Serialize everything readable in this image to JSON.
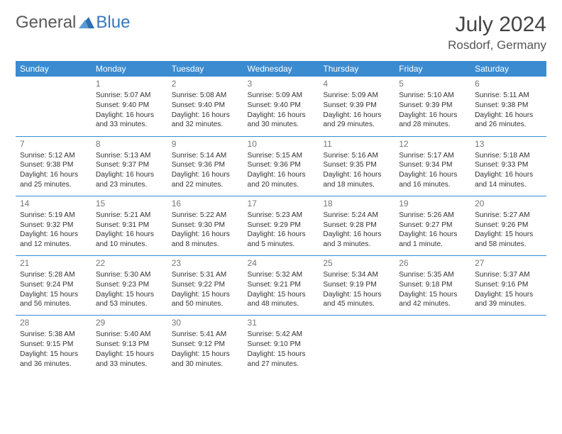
{
  "logo": {
    "part1": "General",
    "part2": "Blue"
  },
  "title": "July 2024",
  "location": "Rosdorf, Germany",
  "header_bg": "#3b8bd1",
  "header_fg": "#ffffff",
  "divider_color": "#3b8bd1",
  "text_color": "#333333",
  "day_headers": [
    "Sunday",
    "Monday",
    "Tuesday",
    "Wednesday",
    "Thursday",
    "Friday",
    "Saturday"
  ],
  "weeks": [
    [
      {
        "n": "",
        "sr": "",
        "ss": "",
        "d1": "",
        "d2": ""
      },
      {
        "n": "1",
        "sr": "Sunrise: 5:07 AM",
        "ss": "Sunset: 9:40 PM",
        "d1": "Daylight: 16 hours",
        "d2": "and 33 minutes."
      },
      {
        "n": "2",
        "sr": "Sunrise: 5:08 AM",
        "ss": "Sunset: 9:40 PM",
        "d1": "Daylight: 16 hours",
        "d2": "and 32 minutes."
      },
      {
        "n": "3",
        "sr": "Sunrise: 5:09 AM",
        "ss": "Sunset: 9:40 PM",
        "d1": "Daylight: 16 hours",
        "d2": "and 30 minutes."
      },
      {
        "n": "4",
        "sr": "Sunrise: 5:09 AM",
        "ss": "Sunset: 9:39 PM",
        "d1": "Daylight: 16 hours",
        "d2": "and 29 minutes."
      },
      {
        "n": "5",
        "sr": "Sunrise: 5:10 AM",
        "ss": "Sunset: 9:39 PM",
        "d1": "Daylight: 16 hours",
        "d2": "and 28 minutes."
      },
      {
        "n": "6",
        "sr": "Sunrise: 5:11 AM",
        "ss": "Sunset: 9:38 PM",
        "d1": "Daylight: 16 hours",
        "d2": "and 26 minutes."
      }
    ],
    [
      {
        "n": "7",
        "sr": "Sunrise: 5:12 AM",
        "ss": "Sunset: 9:38 PM",
        "d1": "Daylight: 16 hours",
        "d2": "and 25 minutes."
      },
      {
        "n": "8",
        "sr": "Sunrise: 5:13 AM",
        "ss": "Sunset: 9:37 PM",
        "d1": "Daylight: 16 hours",
        "d2": "and 23 minutes."
      },
      {
        "n": "9",
        "sr": "Sunrise: 5:14 AM",
        "ss": "Sunset: 9:36 PM",
        "d1": "Daylight: 16 hours",
        "d2": "and 22 minutes."
      },
      {
        "n": "10",
        "sr": "Sunrise: 5:15 AM",
        "ss": "Sunset: 9:36 PM",
        "d1": "Daylight: 16 hours",
        "d2": "and 20 minutes."
      },
      {
        "n": "11",
        "sr": "Sunrise: 5:16 AM",
        "ss": "Sunset: 9:35 PM",
        "d1": "Daylight: 16 hours",
        "d2": "and 18 minutes."
      },
      {
        "n": "12",
        "sr": "Sunrise: 5:17 AM",
        "ss": "Sunset: 9:34 PM",
        "d1": "Daylight: 16 hours",
        "d2": "and 16 minutes."
      },
      {
        "n": "13",
        "sr": "Sunrise: 5:18 AM",
        "ss": "Sunset: 9:33 PM",
        "d1": "Daylight: 16 hours",
        "d2": "and 14 minutes."
      }
    ],
    [
      {
        "n": "14",
        "sr": "Sunrise: 5:19 AM",
        "ss": "Sunset: 9:32 PM",
        "d1": "Daylight: 16 hours",
        "d2": "and 12 minutes."
      },
      {
        "n": "15",
        "sr": "Sunrise: 5:21 AM",
        "ss": "Sunset: 9:31 PM",
        "d1": "Daylight: 16 hours",
        "d2": "and 10 minutes."
      },
      {
        "n": "16",
        "sr": "Sunrise: 5:22 AM",
        "ss": "Sunset: 9:30 PM",
        "d1": "Daylight: 16 hours",
        "d2": "and 8 minutes."
      },
      {
        "n": "17",
        "sr": "Sunrise: 5:23 AM",
        "ss": "Sunset: 9:29 PM",
        "d1": "Daylight: 16 hours",
        "d2": "and 5 minutes."
      },
      {
        "n": "18",
        "sr": "Sunrise: 5:24 AM",
        "ss": "Sunset: 9:28 PM",
        "d1": "Daylight: 16 hours",
        "d2": "and 3 minutes."
      },
      {
        "n": "19",
        "sr": "Sunrise: 5:26 AM",
        "ss": "Sunset: 9:27 PM",
        "d1": "Daylight: 16 hours",
        "d2": "and 1 minute."
      },
      {
        "n": "20",
        "sr": "Sunrise: 5:27 AM",
        "ss": "Sunset: 9:26 PM",
        "d1": "Daylight: 15 hours",
        "d2": "and 58 minutes."
      }
    ],
    [
      {
        "n": "21",
        "sr": "Sunrise: 5:28 AM",
        "ss": "Sunset: 9:24 PM",
        "d1": "Daylight: 15 hours",
        "d2": "and 56 minutes."
      },
      {
        "n": "22",
        "sr": "Sunrise: 5:30 AM",
        "ss": "Sunset: 9:23 PM",
        "d1": "Daylight: 15 hours",
        "d2": "and 53 minutes."
      },
      {
        "n": "23",
        "sr": "Sunrise: 5:31 AM",
        "ss": "Sunset: 9:22 PM",
        "d1": "Daylight: 15 hours",
        "d2": "and 50 minutes."
      },
      {
        "n": "24",
        "sr": "Sunrise: 5:32 AM",
        "ss": "Sunset: 9:21 PM",
        "d1": "Daylight: 15 hours",
        "d2": "and 48 minutes."
      },
      {
        "n": "25",
        "sr": "Sunrise: 5:34 AM",
        "ss": "Sunset: 9:19 PM",
        "d1": "Daylight: 15 hours",
        "d2": "and 45 minutes."
      },
      {
        "n": "26",
        "sr": "Sunrise: 5:35 AM",
        "ss": "Sunset: 9:18 PM",
        "d1": "Daylight: 15 hours",
        "d2": "and 42 minutes."
      },
      {
        "n": "27",
        "sr": "Sunrise: 5:37 AM",
        "ss": "Sunset: 9:16 PM",
        "d1": "Daylight: 15 hours",
        "d2": "and 39 minutes."
      }
    ],
    [
      {
        "n": "28",
        "sr": "Sunrise: 5:38 AM",
        "ss": "Sunset: 9:15 PM",
        "d1": "Daylight: 15 hours",
        "d2": "and 36 minutes."
      },
      {
        "n": "29",
        "sr": "Sunrise: 5:40 AM",
        "ss": "Sunset: 9:13 PM",
        "d1": "Daylight: 15 hours",
        "d2": "and 33 minutes."
      },
      {
        "n": "30",
        "sr": "Sunrise: 5:41 AM",
        "ss": "Sunset: 9:12 PM",
        "d1": "Daylight: 15 hours",
        "d2": "and 30 minutes."
      },
      {
        "n": "31",
        "sr": "Sunrise: 5:42 AM",
        "ss": "Sunset: 9:10 PM",
        "d1": "Daylight: 15 hours",
        "d2": "and 27 minutes."
      },
      {
        "n": "",
        "sr": "",
        "ss": "",
        "d1": "",
        "d2": ""
      },
      {
        "n": "",
        "sr": "",
        "ss": "",
        "d1": "",
        "d2": ""
      },
      {
        "n": "",
        "sr": "",
        "ss": "",
        "d1": "",
        "d2": ""
      }
    ]
  ]
}
